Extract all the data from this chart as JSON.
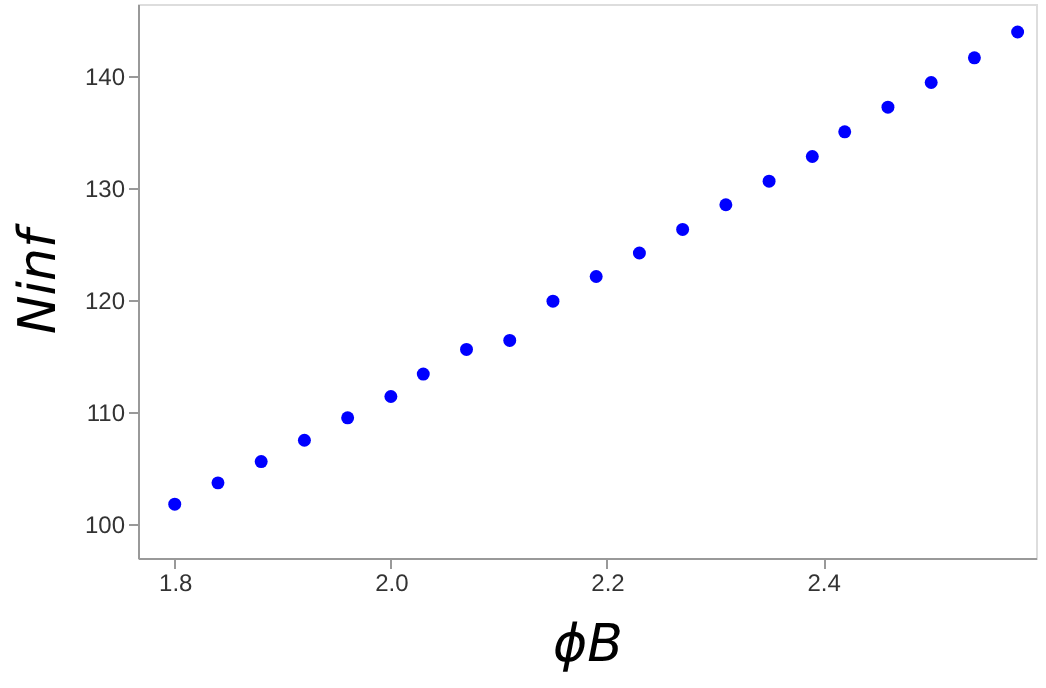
{
  "chart_data": {
    "type": "scatter",
    "xlabel": "ϕB",
    "ylabel": "Ninf",
    "x": [
      1.8,
      1.84,
      1.88,
      1.92,
      1.96,
      2.0,
      2.03,
      2.07,
      2.11,
      2.15,
      2.19,
      2.23,
      2.27,
      2.31,
      2.35,
      2.39,
      2.42,
      2.46,
      2.5,
      2.54,
      2.58
    ],
    "series": [
      {
        "color": "#0000ff",
        "values": [
          101.8,
          103.7,
          105.6,
          107.5,
          109.5,
          111.4,
          113.4,
          115.6,
          116.4,
          119.9,
          122.1,
          124.2,
          126.3,
          128.5,
          130.6,
          132.8,
          135.0,
          137.2,
          139.4,
          141.6,
          143.9
        ]
      }
    ],
    "xlim": [
      1.766,
      2.597
    ],
    "ylim": [
      97,
      146.4
    ],
    "xticks": [
      1.8,
      {
        "value": 2.0,
        "label": "2.0"
      },
      2.2,
      2.4
    ],
    "yticks": [
      100,
      110,
      120,
      130,
      140
    ],
    "marker": "circle",
    "grid": false
  }
}
